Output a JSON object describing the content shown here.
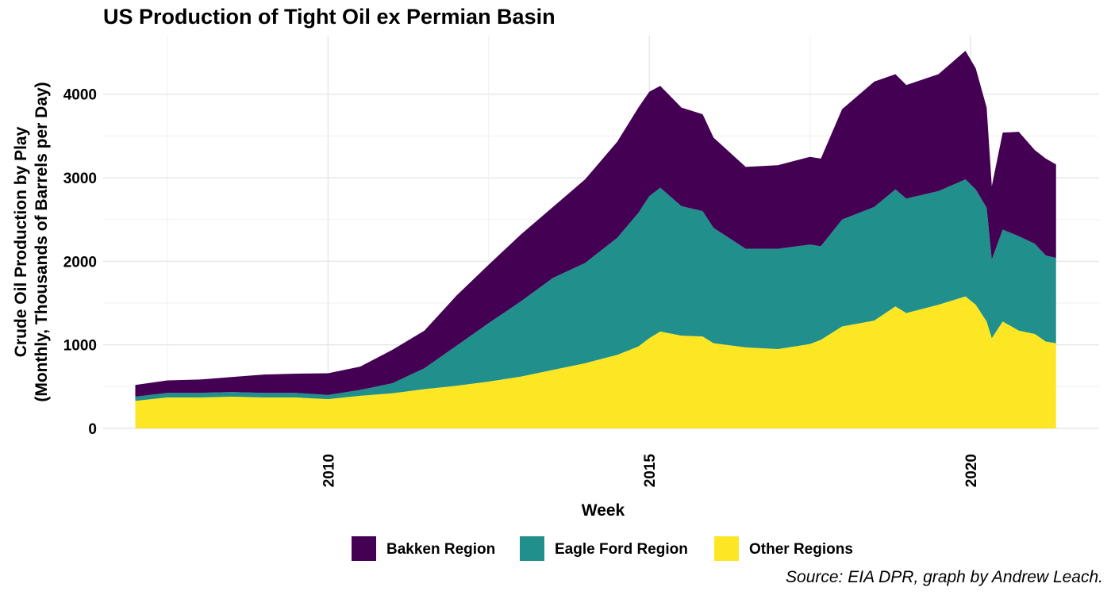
{
  "chart_data": {
    "type": "area",
    "stacked": true,
    "title": "US Production of Tight Oil ex Permian Basin",
    "xlabel": "Week",
    "ylabel_line1": "Crude Oil Production by Play",
    "ylabel_line2": "(Monthly, Thousands of Barrels per Day)",
    "caption": "Source: EIA DPR, graph by Andrew Leach.",
    "xlim": [
      2006.5,
      2022.0
    ],
    "ylim": [
      0,
      4700
    ],
    "x_ticks": [
      2010,
      2015,
      2020
    ],
    "x_tick_labels": [
      "2010",
      "2015",
      "2020"
    ],
    "y_ticks": [
      0,
      1000,
      2000,
      3000,
      4000
    ],
    "y_tick_labels": [
      "0",
      "1000",
      "2000",
      "3000",
      "4000"
    ],
    "grid": true,
    "legend_position": "bottom",
    "x": [
      2007.0,
      2007.5,
      2008.0,
      2008.5,
      2009.0,
      2009.5,
      2010.0,
      2010.5,
      2011.0,
      2011.5,
      2012.0,
      2012.5,
      2013.0,
      2013.5,
      2014.0,
      2014.5,
      2014.83,
      2015.0,
      2015.17,
      2015.5,
      2015.83,
      2016.0,
      2016.5,
      2017.0,
      2017.5,
      2017.67,
      2018.0,
      2018.5,
      2018.83,
      2019.0,
      2019.5,
      2019.92,
      2020.08,
      2020.25,
      2020.33,
      2020.5,
      2020.75,
      2021.0,
      2021.17,
      2021.33
    ],
    "series": [
      {
        "name": "Other Regions",
        "color": "#fde725",
        "values": [
          330,
          370,
          370,
          380,
          370,
          370,
          350,
          390,
          420,
          470,
          510,
          560,
          620,
          700,
          780,
          880,
          980,
          1080,
          1160,
          1110,
          1100,
          1020,
          970,
          950,
          1010,
          1060,
          1220,
          1290,
          1460,
          1380,
          1480,
          1580,
          1480,
          1280,
          1080,
          1280,
          1170,
          1130,
          1040,
          1020
        ]
      },
      {
        "name": "Eagle Ford Region",
        "color": "#21908c",
        "values": [
          50,
          55,
          55,
          55,
          55,
          55,
          50,
          70,
          120,
          250,
          480,
          700,
          900,
          1100,
          1200,
          1400,
          1600,
          1700,
          1720,
          1550,
          1500,
          1380,
          1180,
          1200,
          1190,
          1120,
          1280,
          1360,
          1400,
          1370,
          1360,
          1400,
          1380,
          1360,
          940,
          1100,
          1130,
          1080,
          1030,
          1020
        ]
      },
      {
        "name": "Bakken Region",
        "color": "#440154",
        "values": [
          140,
          150,
          160,
          180,
          220,
          230,
          260,
          280,
          400,
          450,
          600,
          700,
          800,
          850,
          1000,
          1150,
          1260,
          1250,
          1220,
          1180,
          1160,
          1080,
          980,
          1000,
          1050,
          1050,
          1320,
          1500,
          1380,
          1360,
          1400,
          1540,
          1450,
          1200,
          880,
          1160,
          1250,
          1120,
          1160,
          1120
        ]
      }
    ],
    "legend_order": [
      "Bakken Region",
      "Eagle Ford Region",
      "Other Regions"
    ]
  }
}
